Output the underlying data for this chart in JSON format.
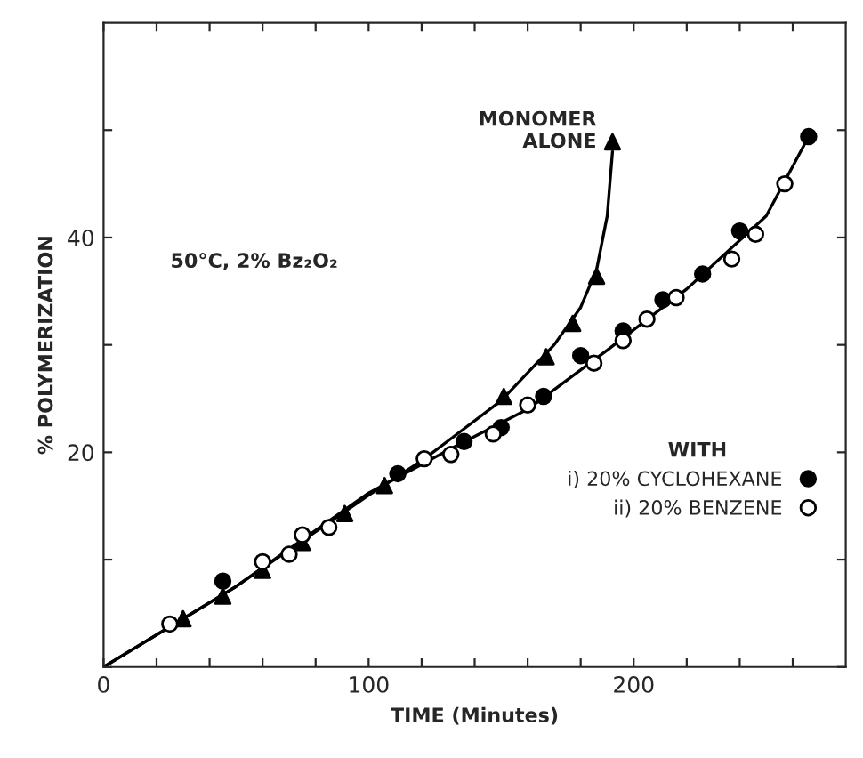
{
  "chart_data": {
    "type": "scatter",
    "xlabel": "TIME (Minutes)",
    "ylabel": "% POLYMERIZATION",
    "xlim": [
      0,
      280
    ],
    "ylim": [
      0,
      60
    ],
    "xticks": [
      0,
      {
        "value": 20,
        "label": null
      },
      {
        "value": 40,
        "label": null
      },
      {
        "value": 60,
        "label": null
      },
      {
        "value": 80,
        "label": null
      },
      100,
      {
        "value": 120,
        "label": null
      },
      {
        "value": 140,
        "label": null
      },
      {
        "value": 160,
        "label": null
      },
      {
        "value": 180,
        "label": null
      },
      200,
      {
        "value": 220,
        "label": null
      },
      {
        "value": 240,
        "label": null
      },
      {
        "value": 260,
        "label": null
      }
    ],
    "yticks": [
      {
        "value": 0,
        "label": null
      },
      {
        "value": 10,
        "label": null
      },
      20,
      {
        "value": 30,
        "label": null
      },
      40,
      {
        "value": 50,
        "label": null
      }
    ],
    "grid": false,
    "legend": "center right",
    "legend_title": "WITH",
    "annotations": [
      "50°C, 2% Bz₂O₂"
    ],
    "series": [
      {
        "name": "MONOMER ALONE",
        "color": "#000000",
        "marker": "triangle",
        "x": [
          30,
          45,
          60,
          75,
          91,
          106,
          151,
          167,
          177,
          186,
          192
        ],
        "values": [
          4.5,
          6.6,
          9.0,
          11.6,
          14.3,
          16.9,
          25.2,
          28.9,
          32.0,
          36.4,
          48.9
        ]
      },
      {
        "name": "i) 20% CYCLOHEXANE",
        "color": "#000000",
        "marker": "circle",
        "x": [
          45,
          111,
          136,
          150,
          166,
          180,
          196,
          211,
          226,
          240,
          266
        ],
        "values": [
          8.0,
          18.0,
          21.0,
          22.3,
          25.2,
          29.0,
          31.3,
          34.2,
          36.6,
          40.6,
          49.4
        ]
      },
      {
        "name": "ii) 20% BENZENE",
        "color": "#ffffff",
        "marker": "circle",
        "x": [
          25,
          60,
          70,
          75,
          85,
          121,
          131,
          147,
          160,
          185,
          196,
          205,
          216,
          237,
          246,
          257
        ],
        "values": [
          4.0,
          9.8,
          10.5,
          12.3,
          13.0,
          19.4,
          19.8,
          21.7,
          24.4,
          28.3,
          30.4,
          32.4,
          34.4,
          38.0,
          40.3,
          45.0
        ]
      },
      {
        "type": "line",
        "color": "#000000",
        "marker": "none",
        "x": [
          0,
          50,
          100,
          120,
          150,
          170,
          180,
          186,
          190,
          192
        ],
        "values": [
          0,
          7.5,
          16.0,
          19.2,
          24.8,
          30.0,
          33.5,
          37.0,
          42.0,
          48.0
        ]
      },
      {
        "type": "line",
        "color": "#000000",
        "marker": "none",
        "x": [
          0,
          50,
          100,
          130,
          160,
          190,
          220,
          250,
          266
        ],
        "values": [
          0,
          7.5,
          16.2,
          20.2,
          24.0,
          29.5,
          35.2,
          42.0,
          49.4
        ]
      }
    ]
  }
}
